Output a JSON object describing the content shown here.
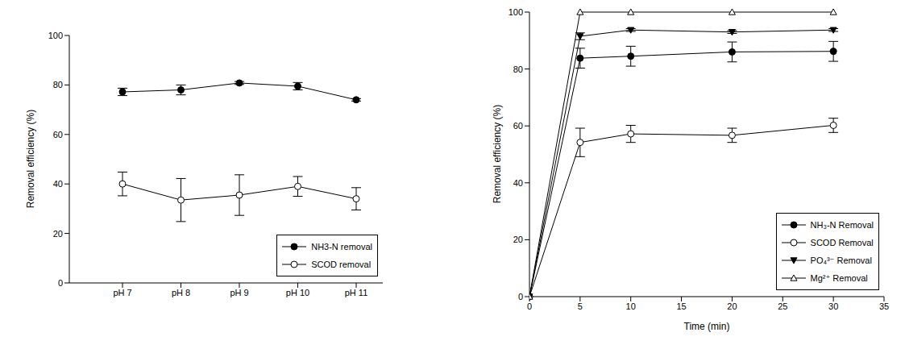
{
  "chart_data": [
    {
      "type": "line",
      "categories": [
        "pH 7",
        "pH 8",
        "pH 9",
        "pH 10",
        "pH 11"
      ],
      "ylabel": "Removal efficiency (%)",
      "ylim": [
        0,
        100
      ],
      "yticks": [
        0,
        20,
        40,
        60,
        80,
        100
      ],
      "legend": "lower right",
      "series": [
        {
          "name": "NH3-N removal",
          "color": "#000000",
          "marker": "circle",
          "values": [
            77.2,
            78,
            80.8,
            79.5,
            74
          ],
          "errors": [
            1.5,
            2,
            0.6,
            1.5,
            0.5
          ]
        },
        {
          "name": "SCOD removal",
          "color": "#000000",
          "marker": "open_circle",
          "values": [
            40,
            33.5,
            35.5,
            39,
            34
          ],
          "errors": [
            4.8,
            8.7,
            8.2,
            4,
            4.5
          ]
        }
      ]
    },
    {
      "type": "line",
      "xlabel": "Time (min)",
      "ylabel": "Removal efficiency (%)",
      "x": [
        0,
        5,
        10,
        20,
        30
      ],
      "xlim": [
        0,
        35
      ],
      "xticks": [
        0,
        5,
        10,
        15,
        20,
        25,
        30,
        35
      ],
      "ylim": [
        0,
        100
      ],
      "yticks": [
        0,
        20,
        40,
        60,
        80,
        100
      ],
      "legend": "lower right",
      "series": [
        {
          "name": "NH₃-N Removal",
          "color": "#000000",
          "marker": "circle",
          "values": [
            0,
            83.8,
            84.5,
            86,
            86.2
          ],
          "errors": [
            0,
            3.5,
            3.5,
            3.5,
            3.5
          ]
        },
        {
          "name": "SCOD Removal",
          "color": "#000000",
          "marker": "open_circle",
          "values": [
            0,
            54.2,
            57.2,
            56.7,
            60.2
          ],
          "errors": [
            0,
            5,
            3,
            2.5,
            2.5
          ]
        },
        {
          "name": "PO₄³⁻ Removal",
          "color": "#000000",
          "marker": "triangle_down",
          "values": [
            0,
            91.5,
            93.7,
            93,
            93.7
          ],
          "errors": [
            0,
            1.2,
            0.5,
            0.5,
            0.5
          ]
        },
        {
          "name": "Mg²⁺ Removal",
          "color": "#000000",
          "marker": "open_triangle_up",
          "values": [
            0,
            100,
            100,
            100,
            100
          ]
        }
      ]
    }
  ]
}
